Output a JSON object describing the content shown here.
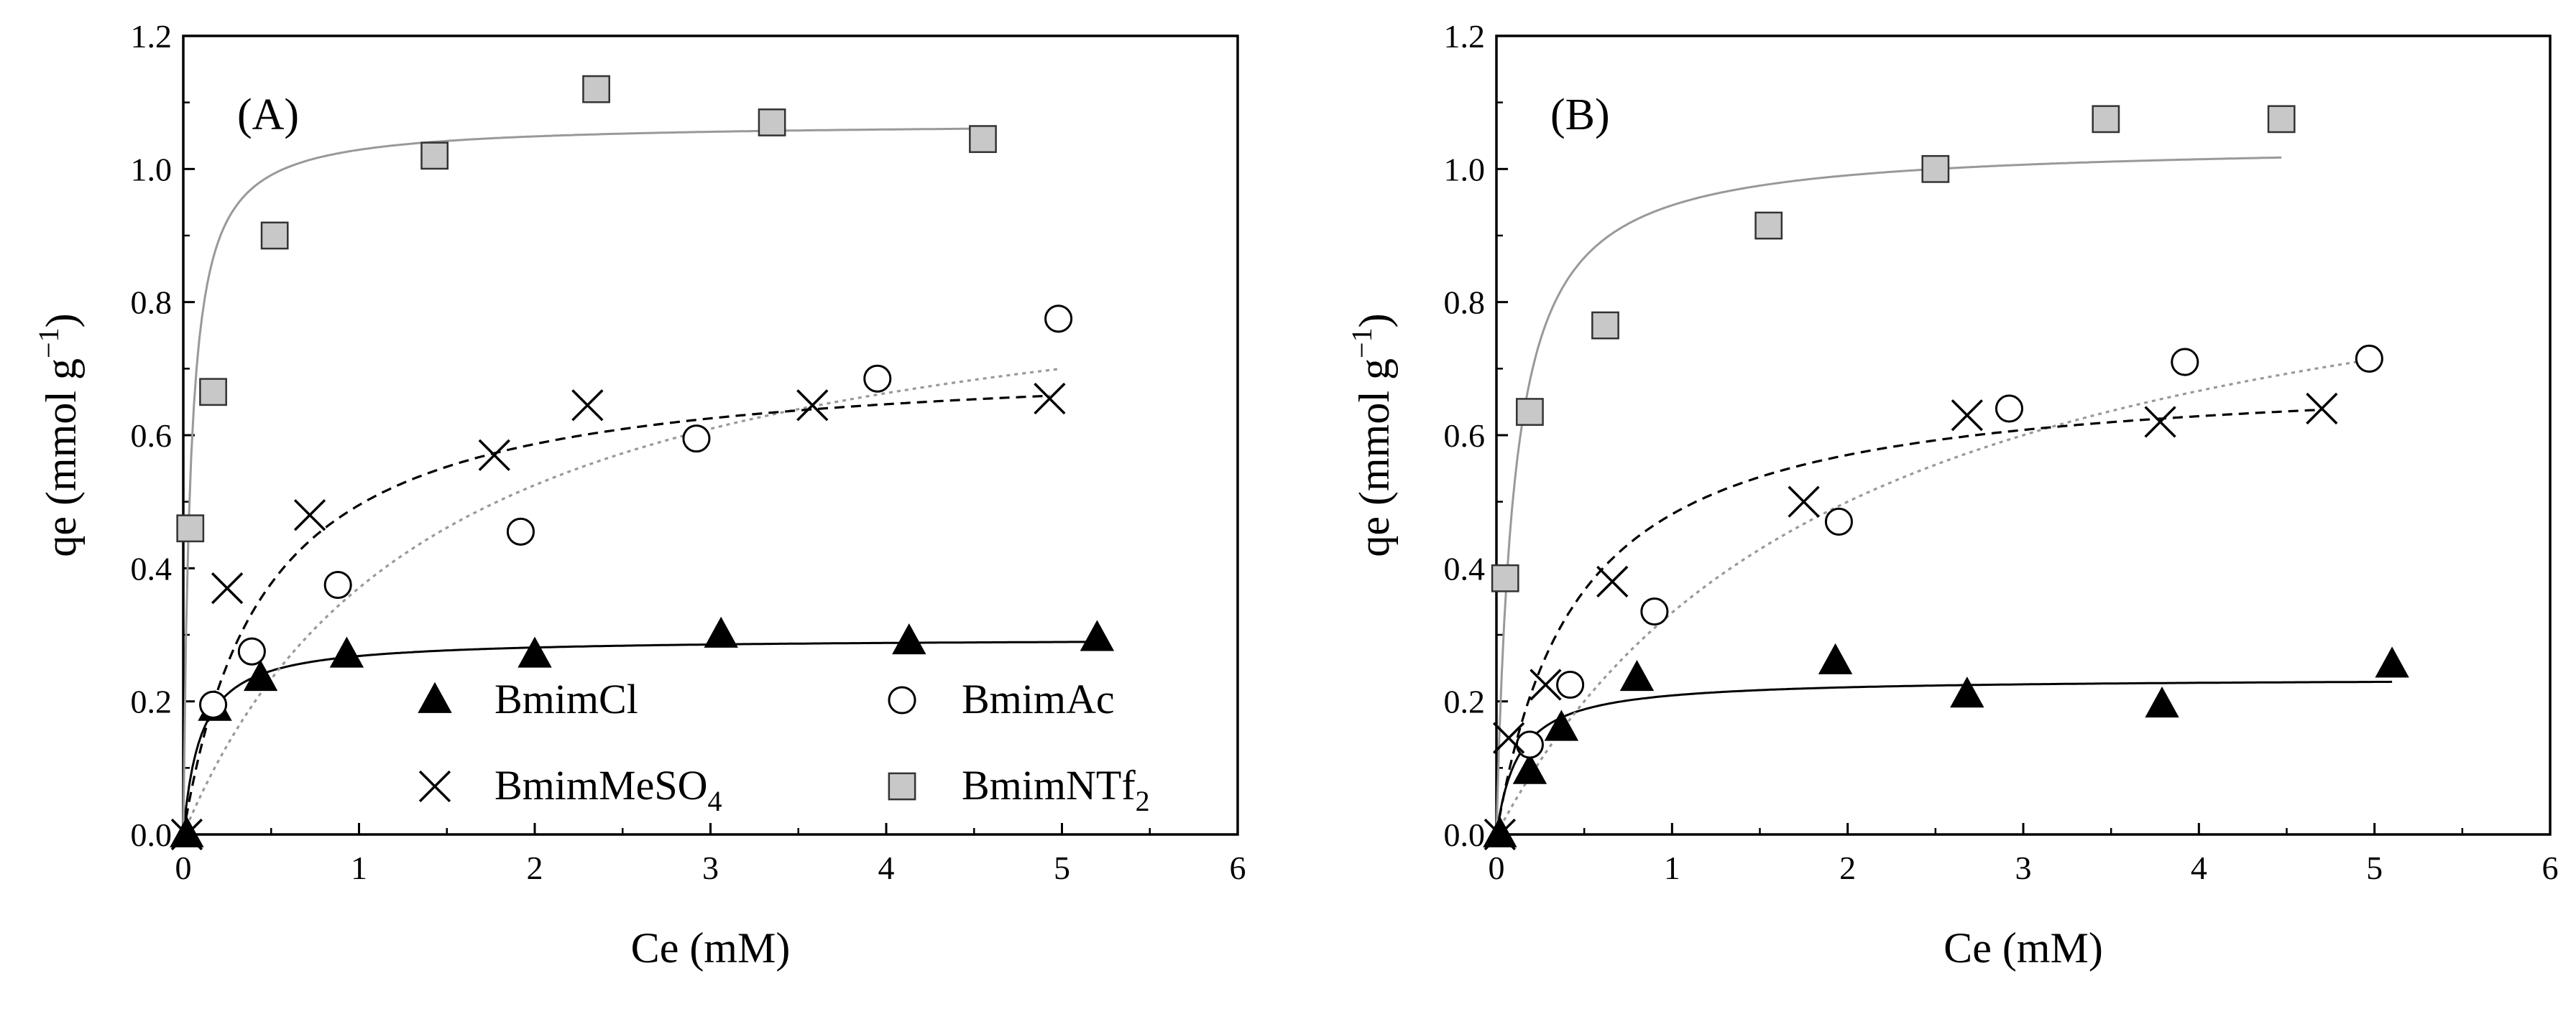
{
  "chart_data": [
    {
      "type": "scatter",
      "panel_label": "(A)",
      "xlabel": "Ce (mM)",
      "ylabel": "qe (mmol g",
      "ylabel_sup": "−1",
      "ylabel_close": ")",
      "xlim": [
        0,
        6
      ],
      "ylim": [
        0,
        1.2
      ],
      "xticks": [
        "0",
        "1",
        "2",
        "3",
        "4",
        "5",
        "6"
      ],
      "yticks": [
        "0.0",
        "0.2",
        "0.4",
        "0.6",
        "0.8",
        "1.0",
        "1.2"
      ],
      "series": [
        {
          "name": "BmimCl",
          "marker": "triangle",
          "fill": "#000000",
          "x": [
            0.02,
            0.18,
            0.44,
            0.93,
            2.0,
            3.06,
            4.13,
            5.2
          ],
          "y": [
            0.0,
            0.19,
            0.235,
            0.27,
            0.27,
            0.3,
            0.29,
            0.295
          ],
          "fit": {
            "model": "langmuir",
            "qmax": 0.295,
            "K": 10,
            "style": "solid",
            "color": "#000000",
            "xmax": 5.2
          }
        },
        {
          "name": "BmimAc",
          "marker": "circle",
          "fill": "#ffffff",
          "x": [
            0.17,
            0.39,
            0.88,
            1.92,
            2.92,
            3.95,
            4.98
          ],
          "y": [
            0.195,
            0.275,
            0.375,
            0.455,
            0.595,
            0.685,
            0.775
          ],
          "fit": {
            "model": "langmuir",
            "qmax": 0.9,
            "K": 0.7,
            "style": "dotted",
            "color": "#999999",
            "xmax": 4.98
          }
        },
        {
          "name": "BmimMeSO",
          "name_sub": "4",
          "marker": "cross",
          "fill": "none",
          "x": [
            0.02,
            0.25,
            0.72,
            1.77,
            2.3,
            3.58,
            4.93
          ],
          "y": [
            0.0,
            0.37,
            0.48,
            0.57,
            0.645,
            0.645,
            0.655
          ],
          "fit": {
            "model": "langmuir",
            "qmax": 0.72,
            "K": 2.2,
            "style": "dashed",
            "color": "#000000",
            "xmax": 4.93
          }
        },
        {
          "name": "BmimNTf",
          "name_sub": "2",
          "marker": "square",
          "fill": "#c8c8c8",
          "x": [
            0.04,
            0.17,
            0.52,
            1.43,
            2.35,
            3.35,
            4.55
          ],
          "y": [
            0.46,
            0.665,
            0.9,
            1.02,
            1.12,
            1.07,
            1.045
          ],
          "fit": {
            "model": "langmuir",
            "qmax": 1.07,
            "K": 25,
            "style": "solid",
            "color": "#999999",
            "xmax": 4.55
          }
        }
      ]
    },
    {
      "type": "scatter",
      "panel_label": "(B)",
      "xlabel": "Ce (mM)",
      "ylabel": "qe (mmol g",
      "ylabel_sup": "−1",
      "ylabel_close": ")",
      "xlim": [
        0,
        6
      ],
      "ylim": [
        0,
        1.2
      ],
      "xticks": [
        "0",
        "1",
        "2",
        "3",
        "4",
        "5",
        "6"
      ],
      "yticks": [
        "0.0",
        "0.2",
        "0.4",
        "0.6",
        "0.8",
        "1.0",
        "1.2"
      ],
      "series": [
        {
          "name": "BmimCl",
          "marker": "triangle",
          "fill": "#000000",
          "x": [
            0.02,
            0.19,
            0.37,
            0.8,
            1.93,
            2.68,
            3.79,
            5.1
          ],
          "y": [
            0.0,
            0.095,
            0.16,
            0.235,
            0.26,
            0.21,
            0.195,
            0.255
          ],
          "fit": {
            "model": "langmuir",
            "qmax": 0.235,
            "K": 8,
            "style": "solid",
            "color": "#000000",
            "xmax": 5.1
          }
        },
        {
          "name": "BmimAc",
          "marker": "circle",
          "fill": "#ffffff",
          "x": [
            0.19,
            0.42,
            0.9,
            1.95,
            2.92,
            3.92,
            4.97
          ],
          "y": [
            0.135,
            0.225,
            0.335,
            0.47,
            0.64,
            0.71,
            0.715
          ],
          "fit": {
            "model": "langmuir",
            "qmax": 1.0,
            "K": 0.5,
            "style": "dotted",
            "color": "#999999",
            "xmax": 4.97
          }
        },
        {
          "name": "BmimMeSO",
          "name_sub": "4",
          "marker": "cross",
          "fill": "none",
          "x": [
            0.02,
            0.07,
            0.28,
            0.66,
            1.75,
            2.68,
            3.78,
            4.7
          ],
          "y": [
            0.0,
            0.145,
            0.225,
            0.38,
            0.5,
            0.63,
            0.62,
            0.64
          ],
          "fit": {
            "model": "langmuir",
            "qmax": 0.7,
            "K": 2.2,
            "style": "dashed",
            "color": "#000000",
            "xmax": 4.7
          }
        },
        {
          "name": "BmimNTf",
          "name_sub": "2",
          "marker": "square",
          "fill": "#c8c8c8",
          "x": [
            0.05,
            0.19,
            0.62,
            1.55,
            2.5,
            3.47,
            4.47
          ],
          "y": [
            0.385,
            0.635,
            0.765,
            0.915,
            1.0,
            1.075,
            1.075
          ],
          "fit": {
            "model": "langmuir",
            "qmax": 1.04,
            "K": 10,
            "style": "solid",
            "color": "#999999",
            "xmax": 4.47
          }
        }
      ]
    }
  ]
}
